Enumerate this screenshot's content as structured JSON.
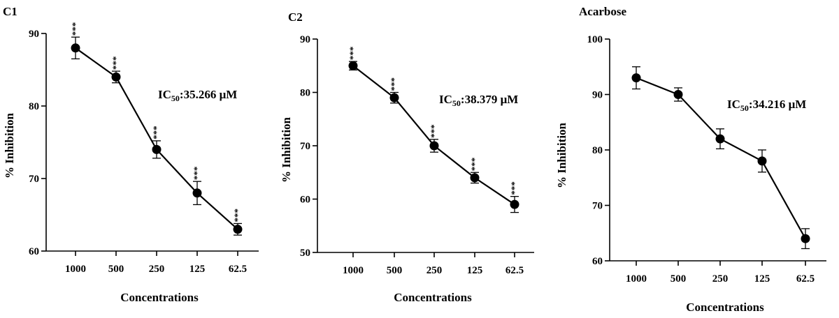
{
  "chart_data": [
    {
      "type": "line",
      "title": "C1",
      "xlabel": "Concentrations",
      "ylabel": "% Inhibition",
      "categories": [
        "1000",
        "500",
        "250",
        "125",
        "62.5"
      ],
      "values": [
        88,
        84,
        74,
        68,
        63
      ],
      "errors": [
        1.5,
        0.8,
        1.2,
        1.6,
        0.8
      ],
      "significance": [
        "***",
        "***",
        "***",
        "***",
        "***"
      ],
      "annotation": {
        "prefix": "IC",
        "sub": "50",
        "suffix": ":35.266 μM"
      },
      "ylim": [
        60,
        90
      ],
      "yticks": [
        60,
        70,
        80,
        90
      ],
      "grid": false
    },
    {
      "type": "line",
      "title": "C2",
      "xlabel": "Concentrations",
      "ylabel": "% Inhibition",
      "categories": [
        "1000",
        "500",
        "250",
        "125",
        "62.5"
      ],
      "values": [
        85,
        79,
        70,
        64,
        59
      ],
      "errors": [
        0.8,
        1.0,
        1.2,
        1.0,
        1.5
      ],
      "significance": [
        "***",
        "***",
        "***",
        "***",
        "***"
      ],
      "annotation": {
        "prefix": "IC",
        "sub": "50",
        "suffix": ":38.379 μM"
      },
      "ylim": [
        50,
        90
      ],
      "yticks": [
        50,
        60,
        70,
        80,
        90
      ],
      "grid": false
    },
    {
      "type": "line",
      "title": "Acarbose",
      "xlabel": "Concentrations",
      "ylabel": "% Inhibition",
      "categories": [
        "1000",
        "500",
        "250",
        "125",
        "62.5"
      ],
      "values": [
        93,
        90,
        82,
        78,
        64
      ],
      "errors": [
        2.0,
        1.2,
        1.8,
        2.0,
        1.8
      ],
      "significance": [],
      "annotation": {
        "prefix": "IC",
        "sub": "50",
        "suffix": ":34.216 μM"
      },
      "ylim": [
        60,
        100
      ],
      "yticks": [
        60,
        70,
        80,
        90,
        100
      ],
      "grid": false
    }
  ]
}
